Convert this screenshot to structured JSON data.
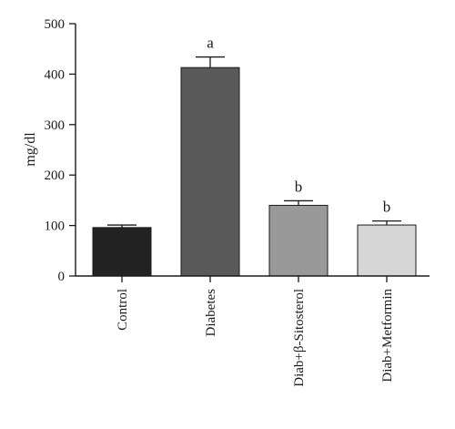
{
  "chart_data": {
    "type": "bar",
    "title": "",
    "xlabel": "",
    "ylabel": "mg/dl",
    "ylim": [
      0,
      500
    ],
    "yticks": [
      0,
      100,
      200,
      300,
      400,
      500
    ],
    "grid": false,
    "legend": "none",
    "categories": [
      "Control",
      "Diabetes",
      "Diab+β-Sitosterol",
      "Diab+Metformin"
    ],
    "values": [
      96,
      413,
      140,
      101
    ],
    "errors": [
      5,
      21,
      9,
      8
    ],
    "significance": [
      "",
      "a",
      "b",
      "b"
    ],
    "bar_colors": [
      "#222222",
      "#595959",
      "#999999",
      "#d6d6d6"
    ],
    "axis_color": "#1a1a1a"
  }
}
